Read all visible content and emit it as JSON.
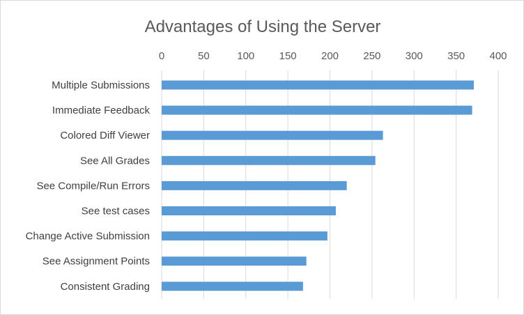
{
  "chart_data": {
    "type": "bar",
    "orientation": "horizontal",
    "title": "Advantages of Using the Server",
    "xlabel": "",
    "ylabel": "",
    "categories": [
      "Multiple Submissions",
      "Immediate Feedback",
      "Colored Diff Viewer",
      "See All Grades",
      "See Compile/Run Errors",
      "See test cases",
      "Change Active Submission",
      "See Assignment Points",
      "Consistent Grading"
    ],
    "values": [
      371,
      369,
      263,
      254,
      220,
      207,
      197,
      172,
      168
    ],
    "xlim": [
      0,
      400
    ],
    "xticks": [
      "0",
      "50",
      "100",
      "150",
      "200",
      "250",
      "300",
      "350",
      "400"
    ],
    "axis_position": "top",
    "grid": true,
    "legend": "none",
    "bar_color": "#5b9bd5"
  }
}
